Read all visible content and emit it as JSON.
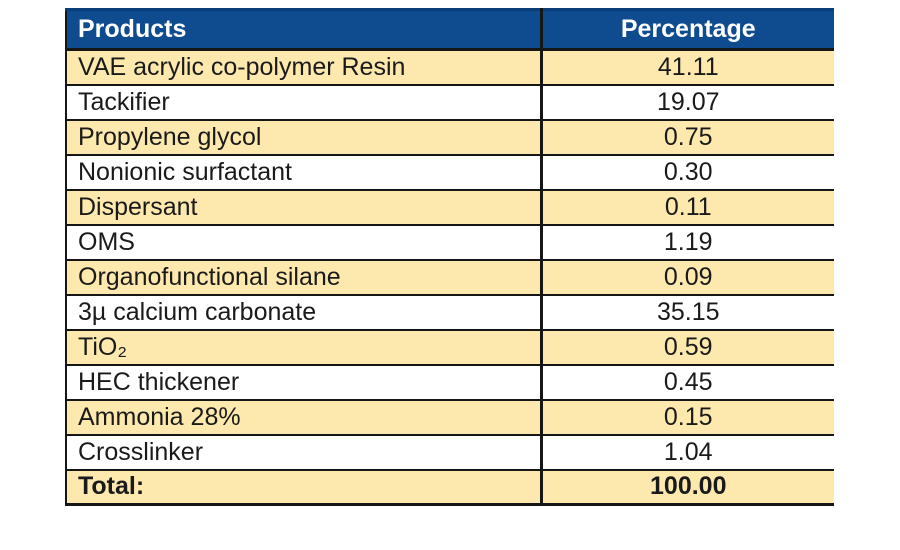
{
  "table": {
    "columns": [
      {
        "label": "Products"
      },
      {
        "label": "Percentage"
      }
    ],
    "rows": [
      {
        "product": "VAE acrylic co-polymer Resin",
        "percentage": "41.11"
      },
      {
        "product": "Tackifier",
        "percentage": "19.07"
      },
      {
        "product": "Propylene glycol",
        "percentage": "0.75"
      },
      {
        "product": "Nonionic surfactant",
        "percentage": "0.30"
      },
      {
        "product": "Dispersant",
        "percentage": "0.11"
      },
      {
        "product": "OMS",
        "percentage": "1.19"
      },
      {
        "product": "Organofunctional silane",
        "percentage": "0.09"
      },
      {
        "product": "3µ calcium carbonate",
        "percentage": "35.15"
      },
      {
        "product": "TiO₂",
        "percentage": "0.59"
      },
      {
        "product": "HEC thickener",
        "percentage": "0.45"
      },
      {
        "product": "Ammonia 28%",
        "percentage": "0.15"
      },
      {
        "product": "Crosslinker",
        "percentage": "1.04"
      }
    ],
    "total": {
      "label": "Total:",
      "value": "100.00"
    }
  },
  "colors": {
    "header_bg": "#0f4b8f",
    "header_top": "#0a3c77",
    "header_text": "#ffffff",
    "row_alt_bg": "#fde9ae",
    "row_bg": "#ffffff",
    "border": "#161616",
    "text": "#1a1a1a",
    "page_bg": "#ffffff"
  },
  "chart_data": {
    "type": "table",
    "title": "",
    "columns": [
      "Products",
      "Percentage"
    ],
    "rows": [
      [
        "VAE acrylic co-polymer Resin",
        41.11
      ],
      [
        "Tackifier",
        19.07
      ],
      [
        "Propylene glycol",
        0.75
      ],
      [
        "Nonionic surfactant",
        0.3
      ],
      [
        "Dispersant",
        0.11
      ],
      [
        "OMS",
        1.19
      ],
      [
        "Organofunctional silane",
        0.09
      ],
      [
        "3µ calcium carbonate",
        35.15
      ],
      [
        "TiO₂",
        0.59
      ],
      [
        "HEC thickener",
        0.45
      ],
      [
        "Ammonia 28%",
        0.15
      ],
      [
        "Crosslinker",
        1.04
      ]
    ],
    "total": [
      "Total:",
      100.0
    ]
  }
}
